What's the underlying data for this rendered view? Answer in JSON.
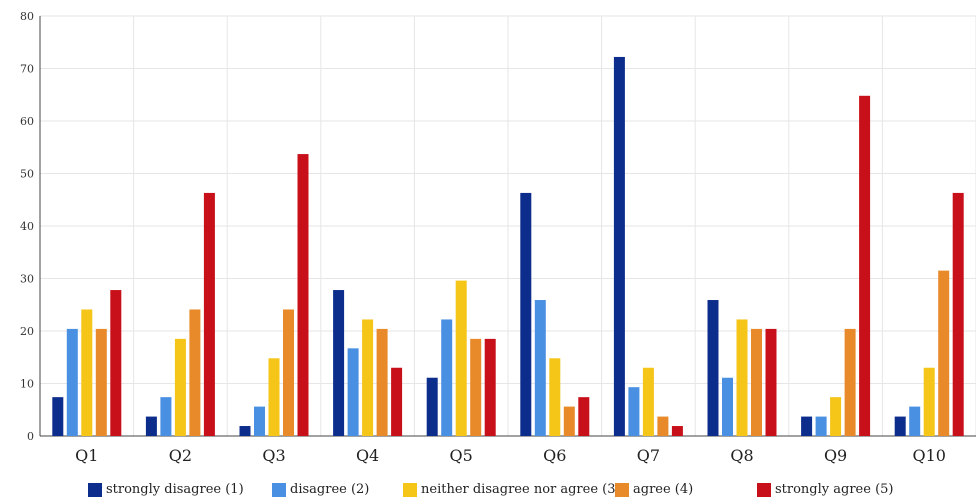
{
  "chart_data": {
    "type": "bar",
    "categories": [
      "Q1",
      "Q2",
      "Q3",
      "Q4",
      "Q5",
      "Q6",
      "Q7",
      "Q8",
      "Q9",
      "Q10"
    ],
    "series": [
      {
        "name": "strongly disagree (1)",
        "color": "#0d2d8c",
        "values": [
          7.4,
          3.7,
          1.9,
          27.8,
          11.1,
          46.3,
          72.2,
          25.9,
          3.7,
          3.7
        ]
      },
      {
        "name": "disagree (2)",
        "color": "#4a90e2",
        "values": [
          20.4,
          7.4,
          5.6,
          16.7,
          22.2,
          25.9,
          9.3,
          11.1,
          3.7,
          5.6
        ]
      },
      {
        "name": "neither disagree nor agree (3)",
        "color": "#f5c518",
        "values": [
          24.1,
          18.5,
          14.8,
          22.2,
          29.6,
          14.8,
          13.0,
          22.2,
          7.4,
          13.0
        ]
      },
      {
        "name": "agree (4)",
        "color": "#e88a2a",
        "values": [
          20.4,
          24.1,
          24.1,
          20.4,
          18.5,
          5.6,
          3.7,
          20.4,
          20.4,
          31.5
        ]
      },
      {
        "name": "strongly agree (5)",
        "color": "#c8101a",
        "values": [
          27.8,
          46.3,
          53.7,
          13.0,
          18.5,
          7.4,
          1.9,
          20.4,
          64.8,
          46.3
        ]
      }
    ],
    "yticks": [
      "0",
      "10",
      "20",
      "30",
      "40",
      "50",
      "60",
      "70",
      "80"
    ],
    "ylim": [
      0,
      80
    ],
    "grid": true,
    "legend_position": "bottom"
  }
}
